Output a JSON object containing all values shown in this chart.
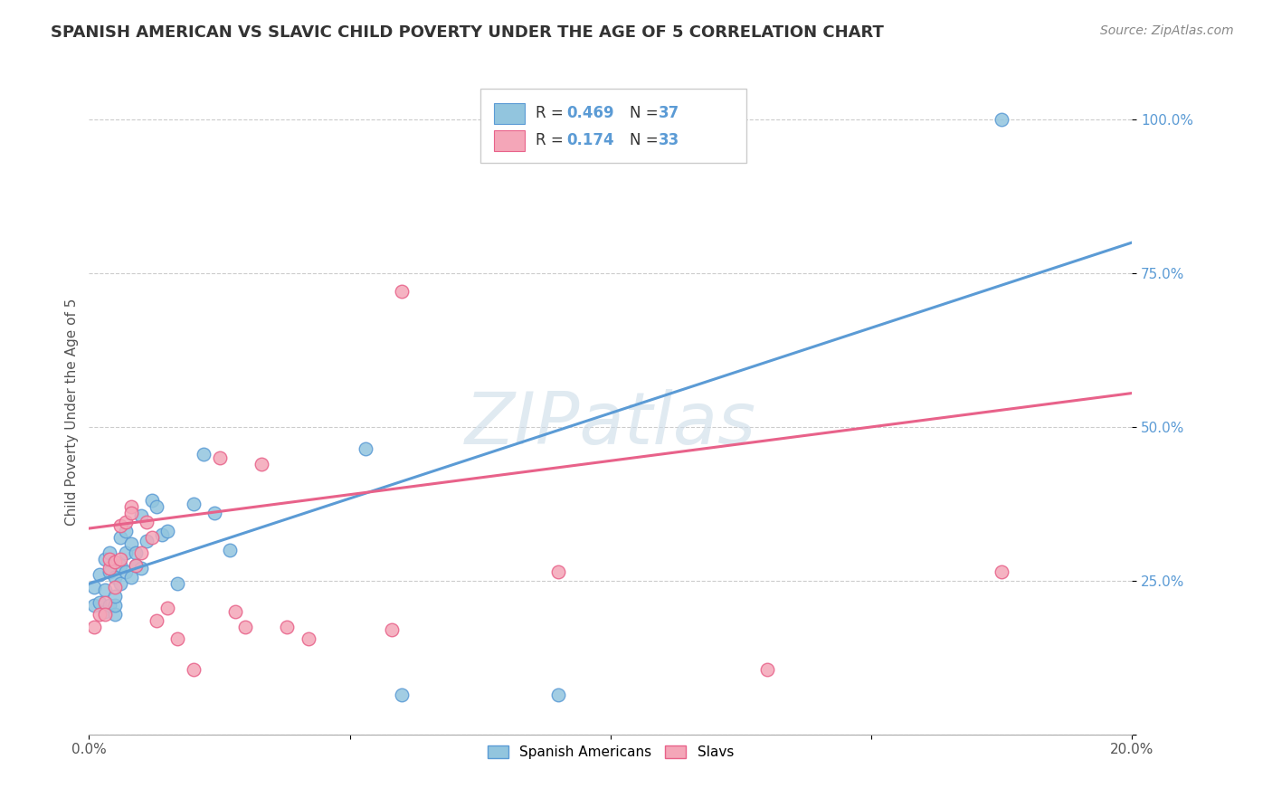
{
  "title": "SPANISH AMERICAN VS SLAVIC CHILD POVERTY UNDER THE AGE OF 5 CORRELATION CHART",
  "source": "Source: ZipAtlas.com",
  "ylabel": "Child Poverty Under the Age of 5",
  "xlim": [
    0.0,
    0.2
  ],
  "ylim": [
    0.0,
    1.05
  ],
  "yticks": [
    0.0,
    0.25,
    0.5,
    0.75,
    1.0
  ],
  "ytick_labels": [
    "",
    "25.0%",
    "50.0%",
    "75.0%",
    "100.0%"
  ],
  "xticks": [
    0.0,
    0.05,
    0.1,
    0.15,
    0.2
  ],
  "xtick_labels": [
    "0.0%",
    "",
    "",
    "",
    "20.0%"
  ],
  "blue_color": "#92c5de",
  "pink_color": "#f4a6b8",
  "blue_edge_color": "#5b9bd5",
  "pink_edge_color": "#e8628a",
  "blue_line_color": "#5b9bd5",
  "pink_line_color": "#e8628a",
  "legend_blue_label": "Spanish Americans",
  "legend_pink_label": "Slavs",
  "watermark": "ZIPatlas",
  "blue_scatter_x": [
    0.001,
    0.001,
    0.002,
    0.002,
    0.003,
    0.003,
    0.003,
    0.004,
    0.004,
    0.004,
    0.005,
    0.005,
    0.005,
    0.005,
    0.006,
    0.006,
    0.006,
    0.007,
    0.007,
    0.007,
    0.008,
    0.008,
    0.009,
    0.009,
    0.01,
    0.01,
    0.011,
    0.012,
    0.013,
    0.014,
    0.015,
    0.017,
    0.02,
    0.022,
    0.024,
    0.027,
    0.053,
    0.06,
    0.09,
    0.175
  ],
  "blue_scatter_y": [
    0.21,
    0.24,
    0.215,
    0.26,
    0.2,
    0.235,
    0.285,
    0.21,
    0.265,
    0.295,
    0.195,
    0.21,
    0.225,
    0.255,
    0.245,
    0.275,
    0.32,
    0.265,
    0.295,
    0.33,
    0.255,
    0.31,
    0.275,
    0.295,
    0.27,
    0.355,
    0.315,
    0.38,
    0.37,
    0.325,
    0.33,
    0.245,
    0.375,
    0.455,
    0.36,
    0.3,
    0.465,
    0.065,
    0.065,
    1.0
  ],
  "pink_scatter_x": [
    0.001,
    0.002,
    0.003,
    0.003,
    0.004,
    0.004,
    0.005,
    0.005,
    0.006,
    0.006,
    0.007,
    0.008,
    0.008,
    0.009,
    0.01,
    0.011,
    0.012,
    0.013,
    0.015,
    0.017,
    0.02,
    0.025,
    0.028,
    0.03,
    0.033,
    0.038,
    0.042,
    0.058,
    0.06,
    0.09,
    0.13,
    0.175
  ],
  "pink_scatter_y": [
    0.175,
    0.195,
    0.215,
    0.195,
    0.27,
    0.285,
    0.28,
    0.24,
    0.34,
    0.285,
    0.345,
    0.37,
    0.36,
    0.275,
    0.295,
    0.345,
    0.32,
    0.185,
    0.205,
    0.155,
    0.105,
    0.45,
    0.2,
    0.175,
    0.44,
    0.175,
    0.155,
    0.17,
    0.72,
    0.265,
    0.105,
    0.265
  ],
  "blue_trend_x": [
    0.0,
    0.2
  ],
  "blue_trend_y": [
    0.245,
    0.8
  ],
  "pink_trend_x": [
    0.0,
    0.2
  ],
  "pink_trend_y": [
    0.335,
    0.555
  ],
  "title_fontsize": 13,
  "source_fontsize": 10,
  "tick_fontsize": 11,
  "ylabel_fontsize": 11
}
